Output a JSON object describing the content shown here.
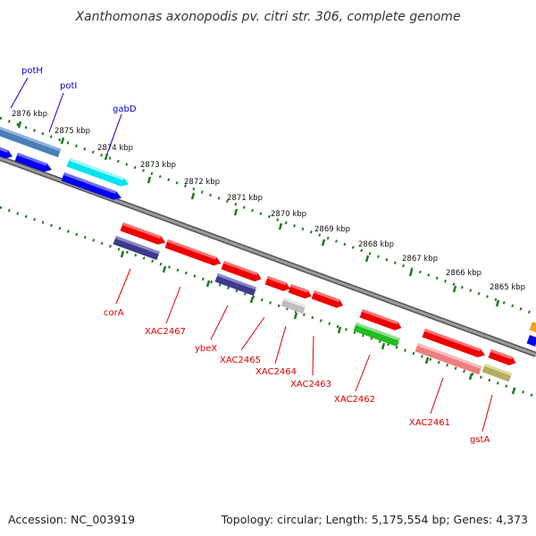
{
  "title": "Xanthomonas axonopodis pv. citri str. 306, complete genome",
  "footer": {
    "accession": "Accession: NC_003919",
    "summary": "Topology: circular; Length: 5,175,554 bp; Genes: 4,373"
  },
  "colors": {
    "backbone": "#808080",
    "tick": "#2e7d32",
    "label_blue": "#0000cc",
    "label_red": "#dd0000"
  },
  "scale_labels": [
    "2876 kbp",
    "2875 kbp",
    "2874 kbp",
    "2873 kbp",
    "2872 kbp",
    "2871 kbp",
    "2870 kbp",
    "2869 kbp",
    "2868 kbp",
    "2867 kbp",
    "2866 kbp",
    "2865 kbp"
  ],
  "gene_labels": [
    {
      "name": "potH",
      "color": "#0000cc"
    },
    {
      "name": "potI",
      "color": "#0000cc"
    },
    {
      "name": "gabD",
      "color": "#0000cc"
    },
    {
      "name": "corA",
      "color": "#dd0000"
    },
    {
      "name": "XAC2467",
      "color": "#dd0000"
    },
    {
      "name": "ybeX",
      "color": "#dd0000"
    },
    {
      "name": "XAC2465",
      "color": "#dd0000"
    },
    {
      "name": "XAC2464",
      "color": "#dd0000"
    },
    {
      "name": "XAC2463",
      "color": "#dd0000"
    },
    {
      "name": "XAC2462",
      "color": "#dd0000"
    },
    {
      "name": "XAC2461",
      "color": "#dd0000"
    },
    {
      "name": "gstA",
      "color": "#dd0000"
    }
  ],
  "gene_colors": {
    "blue": "#0000ee",
    "steel": "#4a7fb5",
    "cyan": "#00e5ee",
    "red": "#ee0000",
    "navy": "#3d3a8c",
    "gray": "#bdbdbd",
    "green": "#22bb22",
    "pink": "#ee7f7f",
    "khaki": "#b5ad5e",
    "orange": "#f0a020"
  }
}
